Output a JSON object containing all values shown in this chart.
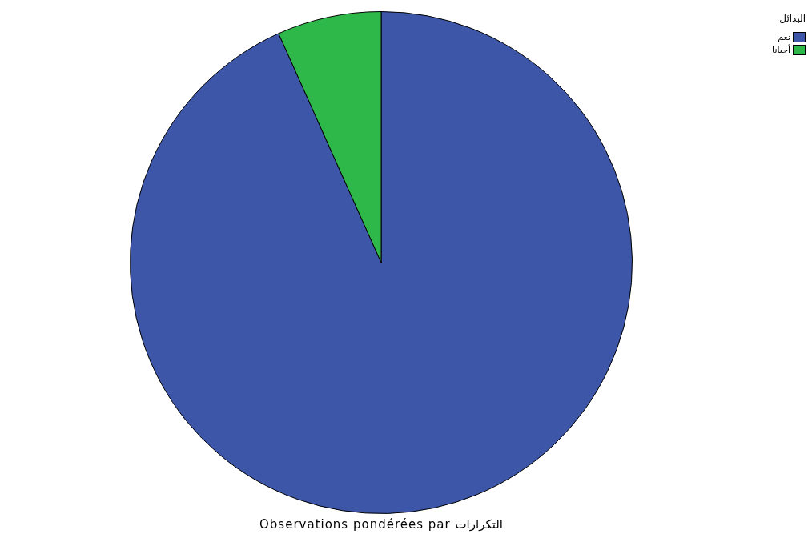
{
  "chart_data": {
    "type": "pie",
    "legend_title": "البدائل",
    "categories": [
      "نعم",
      "أحيانا"
    ],
    "values": [
      93.3,
      6.7
    ],
    "colors": [
      "#3d56a8",
      "#2eb84a"
    ],
    "legend": "top right",
    "annotations": [
      "Observations pondérées par التكرارات"
    ]
  }
}
